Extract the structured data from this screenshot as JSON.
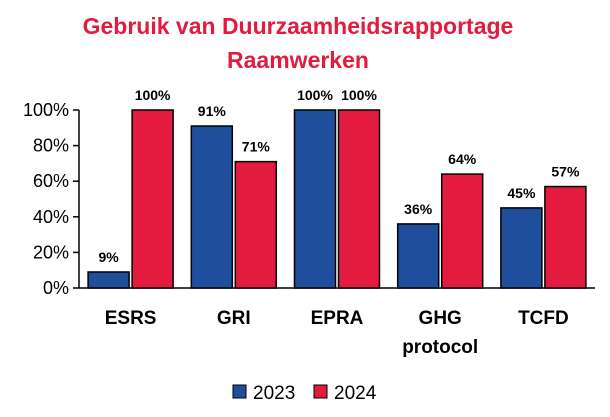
{
  "chart_data": {
    "type": "bar",
    "title_lines": [
      "Gebruik van Duurzaamheidsrapportage",
      "Raamwerken"
    ],
    "categories": [
      [
        "ESRS"
      ],
      [
        "GRI"
      ],
      [
        "EPRA"
      ],
      [
        "GHG",
        "protocol"
      ],
      [
        "TCFD"
      ]
    ],
    "series": [
      {
        "name": "2023",
        "color": "#1f4e9c",
        "values": [
          9,
          91,
          100,
          36,
          45
        ],
        "labels": [
          "9%",
          "91%",
          "100%",
          "36%",
          "45%"
        ]
      },
      {
        "name": "2024",
        "color": "#e31b3e",
        "values": [
          100,
          71,
          100,
          64,
          57
        ],
        "labels": [
          "100%",
          "71%",
          "100%",
          "64%",
          "57%"
        ]
      }
    ],
    "y_ticks": [
      "0%",
      "20%",
      "40%",
      "60%",
      "80%",
      "100%"
    ],
    "ylim": [
      0,
      100
    ],
    "grid": false,
    "legend_position": "bottom"
  }
}
